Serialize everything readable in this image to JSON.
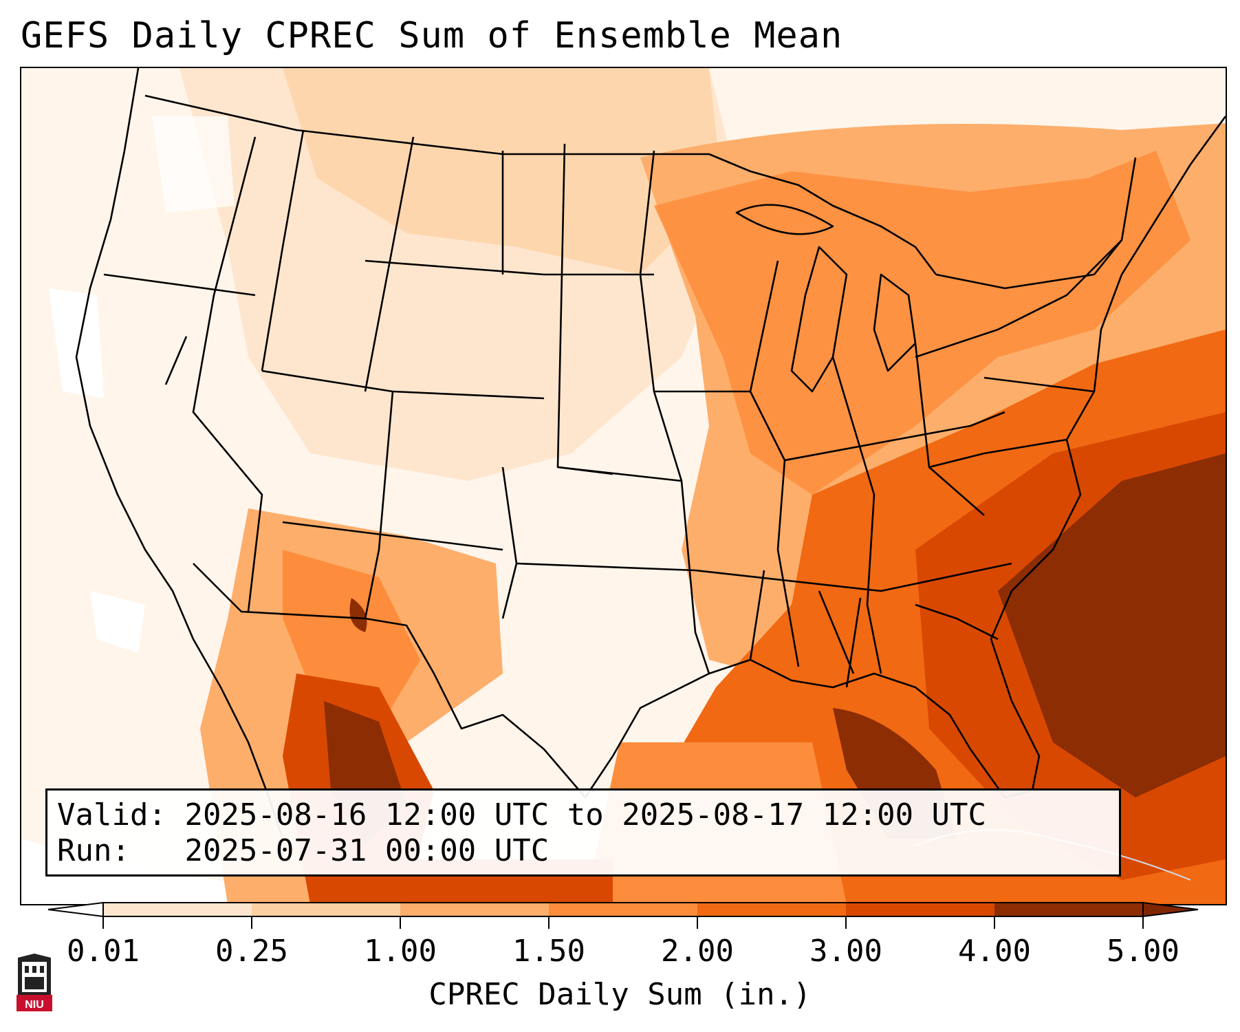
{
  "title": "GEFS Daily CPREC Sum of Ensemble Mean",
  "valid_label": "Valid:",
  "valid_value": "2025-08-16 12:00 UTC to 2025-08-17 12:00 UTC",
  "run_label": "Run:",
  "run_value": "2025-07-31 00:00 UTC",
  "colorbar": {
    "title": "CPREC Daily Sum (in.)",
    "ticks": [
      "0.01",
      "0.25",
      "1.00",
      "1.50",
      "2.00",
      "3.00",
      "4.00",
      "5.00"
    ],
    "colors": [
      "#fff5eb",
      "#fee6ce",
      "#fdd0a2",
      "#fdae6b",
      "#fd8d3c",
      "#f16913",
      "#d94801",
      "#8c2d04"
    ],
    "extend_min_color": "#ffffff",
    "extend_max_color": "#7f2704"
  },
  "logo_text": "NIU"
}
